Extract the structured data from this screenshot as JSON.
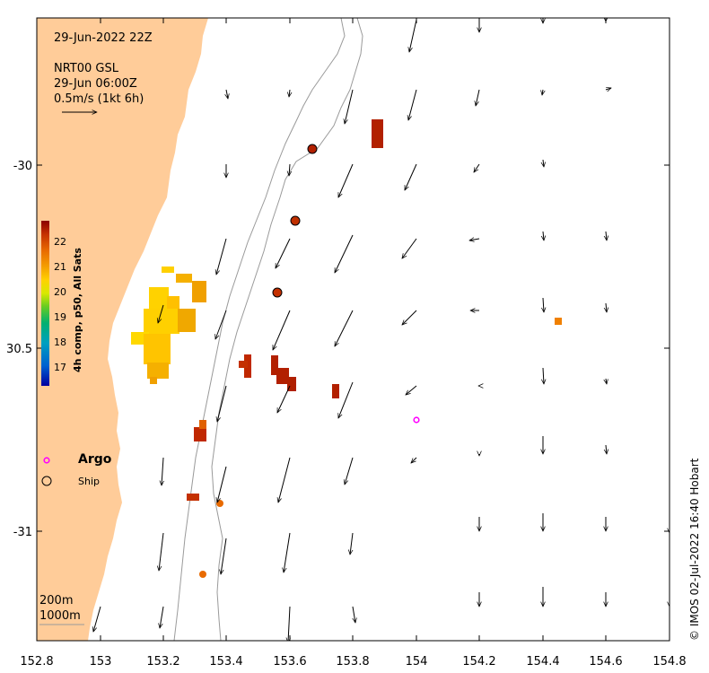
{
  "header": {
    "date_label": "29-Jun-2022 22Z",
    "product_label": "NRT00 GSL",
    "product_time": "29-Jun 06:00Z",
    "scale_label": "0.5m/s (1kt 6h)"
  },
  "colorbar": {
    "title": "4h comp, p50, All Sats",
    "ticks": [
      "22",
      "21",
      "20",
      "19",
      "18",
      "17"
    ],
    "colors": [
      "#8b0000",
      "#c43000",
      "#e86a00",
      "#f5a000",
      "#ffd200",
      "#d8e800",
      "#66cc22",
      "#00b070",
      "#00a0c0",
      "#0060d0",
      "#0000a0"
    ]
  },
  "legend": {
    "argo_label": "Argo",
    "ship_label": "Ship",
    "argo_color": "#ff00ff"
  },
  "contours": {
    "c200": "200m",
    "c1000": "1000m"
  },
  "credit": "© IMOS 02-Jul-2022 16:40 Hobart",
  "axes": {
    "x_ticks": [
      "152.8",
      "153",
      "153.2",
      "153.4",
      "153.6",
      "153.8",
      "154",
      "154.2",
      "154.4",
      "154.6",
      "154.8"
    ],
    "y_ticks": [
      "-30",
      "30.5",
      "-31"
    ],
    "land_color": "#ffcc99"
  }
}
